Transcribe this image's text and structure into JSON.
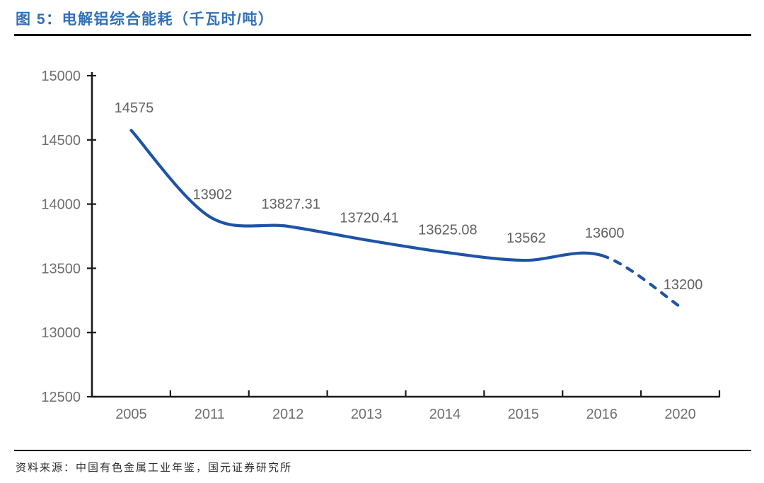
{
  "figure": {
    "title": "图 5：电解铝综合能耗（千瓦时/吨）",
    "source": "资料来源：中国有色金属工业年鉴，国元证券研究所"
  },
  "chart_data": {
    "type": "line",
    "title": "电解铝综合能耗（千瓦时/吨）",
    "xlabel": "",
    "ylabel": "",
    "categories": [
      "2005",
      "2011",
      "2012",
      "2013",
      "2014",
      "2015",
      "2016",
      "2020"
    ],
    "series": [
      {
        "name": "电解铝综合能耗（千瓦时/吨）",
        "values": [
          14575,
          13902,
          13827.31,
          13720.41,
          13625.08,
          13562,
          13600,
          13200
        ],
        "point_labels": [
          "14575",
          "13902",
          "13827.31",
          "13720.41",
          "13625.08",
          "13562",
          "13600",
          "13200"
        ],
        "line_color": "#1f54a5",
        "solid_through_category": "2016",
        "dashed_from_category": "2016",
        "dashed_to_category": "2020"
      }
    ],
    "ylim": [
      12500,
      15000
    ],
    "ytick_step": 500,
    "yticks": [
      "12500",
      "13000",
      "13500",
      "14000",
      "14500",
      "15000"
    ],
    "grid": false,
    "legend_position": "none",
    "smooth": true
  },
  "colors": {
    "title_blue": "#3470b6",
    "line_blue": "#1f54a5",
    "axis_black": "#1a1a1a",
    "tick_label_gray": "#6f6f6f",
    "data_label_gray": "#616161"
  }
}
